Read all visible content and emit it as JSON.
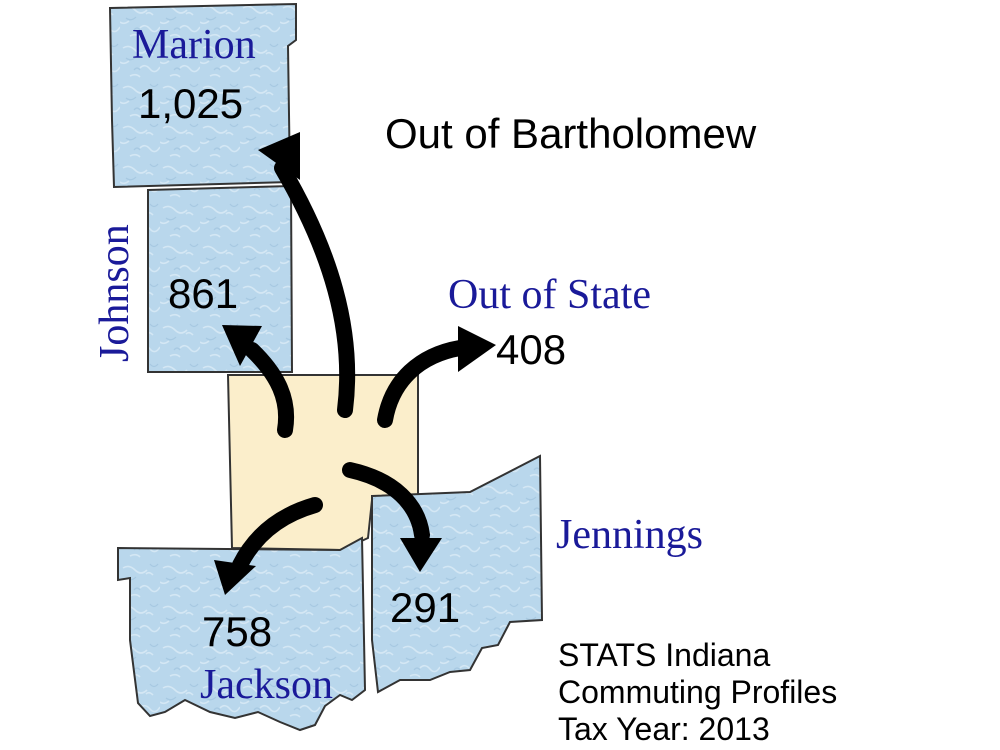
{
  "title": "Out of Bartholomew",
  "colors": {
    "county_fill": "#b9d7ec",
    "home_county_fill": "#fbeecb",
    "county_name": "#1a1a99",
    "arrow": "#000000"
  },
  "home_county": "Bartholomew",
  "destinations": {
    "marion": {
      "name": "Marion",
      "value": "1,025"
    },
    "johnson": {
      "name": "Johnson",
      "value": "861"
    },
    "out_of_state": {
      "name": "Out of State",
      "value": "408"
    },
    "jackson": {
      "name": "Jackson",
      "value": "758"
    },
    "jennings": {
      "name": "Jennings",
      "value": "291"
    }
  },
  "source": {
    "line1": "STATS Indiana",
    "line2": "Commuting Profiles",
    "line3": "Tax Year: 2013"
  }
}
